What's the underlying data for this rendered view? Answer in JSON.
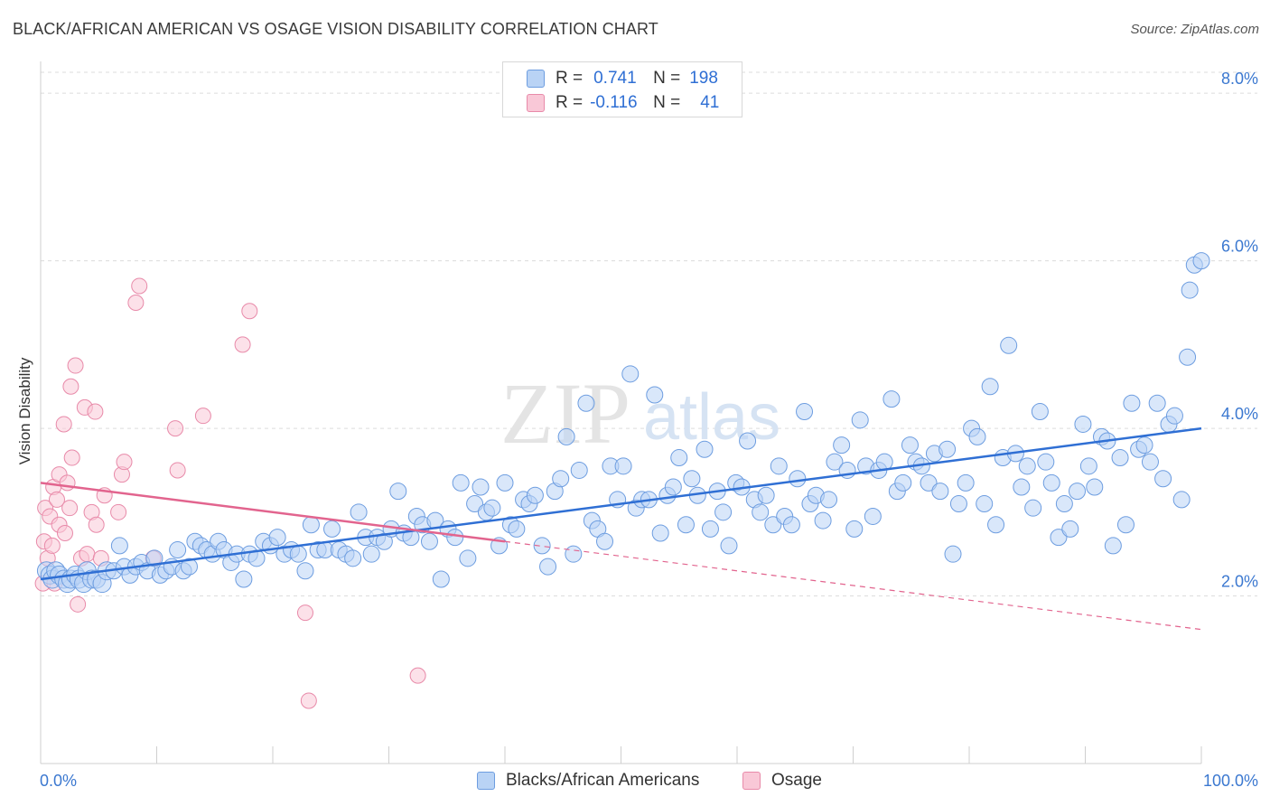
{
  "title": "BLACK/AFRICAN AMERICAN VS OSAGE VISION DISABILITY CORRELATION CHART",
  "source": "Source: ZipAtlas.com",
  "watermark": {
    "zip": "ZIP",
    "atlas": "atlas"
  },
  "legend": {
    "r_label": "R =",
    "n_label": "N =",
    "series1": {
      "r": "0.741",
      "n": "198"
    },
    "series2": {
      "r": "-0.116",
      "n": "41"
    }
  },
  "colors": {
    "blue_fill": "#b9d3f5",
    "blue_stroke": "#6d9de0",
    "blue_line": "#2f6fd4",
    "pink_fill": "#f9c8d7",
    "pink_stroke": "#e88aa9",
    "pink_line": "#e2648e",
    "tick_label": "#3b78d0",
    "grid": "#dcdcdc"
  },
  "chart_data": {
    "type": "scatter",
    "title": "BLACK/AFRICAN AMERICAN VS OSAGE VISION DISABILITY CORRELATION CHART",
    "xlabel": "",
    "ylabel": "Vision Disability",
    "xlim": [
      0,
      100
    ],
    "ylim": [
      0,
      8.25
    ],
    "x_tick_labels": [
      "0.0%",
      "100.0%"
    ],
    "y_ticks": [
      2,
      4,
      6,
      8
    ],
    "y_tick_labels": [
      "2.0%",
      "4.0%",
      "6.0%",
      "8.0%"
    ],
    "grid": true,
    "legend_placement": "bottom-center",
    "series": [
      {
        "name": "Blacks/African Americans",
        "trend": {
          "x": [
            0,
            100
          ],
          "y": [
            2.2,
            4.0
          ],
          "style": "solid"
        },
        "points": [
          [
            0.5,
            2.3
          ],
          [
            0.8,
            2.25
          ],
          [
            1.0,
            2.2
          ],
          [
            1.3,
            2.3
          ],
          [
            1.6,
            2.25
          ],
          [
            2.0,
            2.2
          ],
          [
            2.3,
            2.15
          ],
          [
            2.6,
            2.2
          ],
          [
            3.0,
            2.25
          ],
          [
            3.3,
            2.2
          ],
          [
            3.7,
            2.15
          ],
          [
            4.0,
            2.3
          ],
          [
            4.4,
            2.2
          ],
          [
            4.8,
            2.2
          ],
          [
            5.3,
            2.15
          ],
          [
            5.7,
            2.3
          ],
          [
            6.3,
            2.3
          ],
          [
            6.8,
            2.6
          ],
          [
            7.2,
            2.35
          ],
          [
            7.7,
            2.25
          ],
          [
            8.2,
            2.35
          ],
          [
            8.7,
            2.4
          ],
          [
            9.2,
            2.3
          ],
          [
            9.8,
            2.45
          ],
          [
            10.3,
            2.25
          ],
          [
            10.8,
            2.3
          ],
          [
            11.3,
            2.35
          ],
          [
            11.8,
            2.55
          ],
          [
            12.3,
            2.3
          ],
          [
            12.8,
            2.35
          ],
          [
            13.3,
            2.65
          ],
          [
            13.8,
            2.6
          ],
          [
            14.3,
            2.55
          ],
          [
            14.8,
            2.5
          ],
          [
            15.3,
            2.65
          ],
          [
            15.8,
            2.55
          ],
          [
            16.4,
            2.4
          ],
          [
            16.9,
            2.5
          ],
          [
            17.5,
            2.2
          ],
          [
            18.0,
            2.5
          ],
          [
            18.6,
            2.45
          ],
          [
            19.2,
            2.65
          ],
          [
            19.8,
            2.6
          ],
          [
            20.4,
            2.7
          ],
          [
            21.0,
            2.5
          ],
          [
            21.6,
            2.55
          ],
          [
            22.2,
            2.5
          ],
          [
            22.8,
            2.3
          ],
          [
            23.3,
            2.85
          ],
          [
            23.9,
            2.55
          ],
          [
            24.5,
            2.55
          ],
          [
            25.1,
            2.8
          ],
          [
            25.7,
            2.55
          ],
          [
            26.3,
            2.5
          ],
          [
            26.9,
            2.45
          ],
          [
            27.4,
            3.0
          ],
          [
            28.0,
            2.7
          ],
          [
            28.5,
            2.5
          ],
          [
            29.0,
            2.7
          ],
          [
            29.6,
            2.65
          ],
          [
            30.2,
            2.8
          ],
          [
            30.8,
            3.25
          ],
          [
            31.3,
            2.75
          ],
          [
            31.9,
            2.7
          ],
          [
            32.4,
            2.95
          ],
          [
            32.9,
            2.85
          ],
          [
            33.5,
            2.65
          ],
          [
            34.0,
            2.9
          ],
          [
            34.5,
            2.2
          ],
          [
            35.1,
            2.8
          ],
          [
            35.7,
            2.7
          ],
          [
            36.2,
            3.35
          ],
          [
            36.8,
            2.45
          ],
          [
            37.4,
            3.1
          ],
          [
            37.9,
            3.3
          ],
          [
            38.4,
            3.0
          ],
          [
            38.9,
            3.05
          ],
          [
            39.5,
            2.6
          ],
          [
            40.0,
            3.35
          ],
          [
            40.5,
            2.85
          ],
          [
            41.0,
            2.8
          ],
          [
            41.6,
            3.15
          ],
          [
            42.1,
            3.1
          ],
          [
            42.6,
            3.2
          ],
          [
            43.2,
            2.6
          ],
          [
            43.7,
            2.35
          ],
          [
            44.3,
            3.25
          ],
          [
            44.8,
            3.4
          ],
          [
            45.3,
            3.9
          ],
          [
            45.9,
            2.5
          ],
          [
            46.4,
            3.5
          ],
          [
            47.0,
            4.3
          ],
          [
            47.5,
            2.9
          ],
          [
            48.0,
            2.8
          ],
          [
            48.6,
            2.65
          ],
          [
            49.1,
            3.55
          ],
          [
            49.7,
            3.15
          ],
          [
            50.2,
            3.55
          ],
          [
            50.8,
            4.65
          ],
          [
            51.3,
            3.05
          ],
          [
            51.8,
            3.15
          ],
          [
            52.4,
            3.15
          ],
          [
            52.9,
            4.4
          ],
          [
            53.4,
            2.75
          ],
          [
            54.0,
            3.2
          ],
          [
            54.5,
            3.3
          ],
          [
            55.0,
            3.65
          ],
          [
            55.6,
            2.85
          ],
          [
            56.1,
            3.4
          ],
          [
            56.6,
            3.2
          ],
          [
            57.2,
            3.75
          ],
          [
            57.7,
            2.8
          ],
          [
            58.3,
            3.25
          ],
          [
            58.8,
            3.0
          ],
          [
            59.3,
            2.6
          ],
          [
            59.9,
            3.35
          ],
          [
            60.4,
            3.3
          ],
          [
            60.9,
            3.85
          ],
          [
            61.5,
            3.15
          ],
          [
            62.0,
            3.0
          ],
          [
            62.5,
            3.2
          ],
          [
            63.1,
            2.85
          ],
          [
            63.6,
            3.55
          ],
          [
            64.1,
            2.95
          ],
          [
            64.7,
            2.85
          ],
          [
            65.2,
            3.4
          ],
          [
            65.8,
            4.2
          ],
          [
            66.3,
            3.1
          ],
          [
            66.8,
            3.2
          ],
          [
            67.4,
            2.9
          ],
          [
            67.9,
            3.15
          ],
          [
            68.4,
            3.6
          ],
          [
            69.0,
            3.8
          ],
          [
            69.5,
            3.5
          ],
          [
            70.1,
            2.8
          ],
          [
            70.6,
            4.1
          ],
          [
            71.1,
            3.55
          ],
          [
            71.7,
            2.95
          ],
          [
            72.2,
            3.5
          ],
          [
            72.7,
            3.6
          ],
          [
            73.3,
            4.35
          ],
          [
            73.8,
            3.25
          ],
          [
            74.3,
            3.35
          ],
          [
            74.9,
            3.8
          ],
          [
            75.4,
            3.6
          ],
          [
            75.9,
            3.55
          ],
          [
            76.5,
            3.35
          ],
          [
            77.0,
            3.7
          ],
          [
            77.5,
            3.25
          ],
          [
            78.1,
            3.75
          ],
          [
            78.6,
            2.5
          ],
          [
            79.1,
            3.1
          ],
          [
            79.7,
            3.35
          ],
          [
            80.2,
            4.0
          ],
          [
            80.7,
            3.9
          ],
          [
            81.3,
            3.1
          ],
          [
            81.8,
            4.5
          ],
          [
            82.3,
            2.85
          ],
          [
            82.9,
            3.65
          ],
          [
            83.4,
            4.99
          ],
          [
            84.0,
            3.7
          ],
          [
            84.5,
            3.3
          ],
          [
            85.0,
            3.55
          ],
          [
            85.5,
            3.05
          ],
          [
            86.1,
            4.2
          ],
          [
            86.6,
            3.6
          ],
          [
            87.1,
            3.35
          ],
          [
            87.7,
            2.7
          ],
          [
            88.2,
            3.1
          ],
          [
            88.7,
            2.8
          ],
          [
            89.3,
            3.25
          ],
          [
            89.8,
            4.05
          ],
          [
            90.3,
            3.55
          ],
          [
            90.8,
            3.3
          ],
          [
            91.4,
            3.9
          ],
          [
            91.9,
            3.85
          ],
          [
            92.4,
            2.6
          ],
          [
            93.0,
            3.65
          ],
          [
            93.5,
            2.85
          ],
          [
            94.0,
            4.3
          ],
          [
            94.6,
            3.75
          ],
          [
            95.1,
            3.8
          ],
          [
            95.6,
            3.6
          ],
          [
            96.2,
            4.3
          ],
          [
            96.7,
            3.4
          ],
          [
            97.2,
            4.05
          ],
          [
            97.7,
            4.15
          ],
          [
            98.3,
            3.15
          ],
          [
            98.8,
            4.85
          ],
          [
            99.0,
            5.65
          ],
          [
            99.4,
            5.95
          ],
          [
            100.0,
            6.0
          ]
        ]
      },
      {
        "name": "Osage",
        "trend": {
          "x": [
            0,
            40,
            100
          ],
          "y": [
            3.35,
            2.65,
            1.6
          ],
          "style": "solid-then-dashed"
        },
        "points": [
          [
            0.2,
            2.15
          ],
          [
            0.3,
            2.65
          ],
          [
            0.4,
            3.05
          ],
          [
            0.6,
            2.45
          ],
          [
            0.8,
            2.95
          ],
          [
            1.0,
            2.6
          ],
          [
            1.1,
            3.3
          ],
          [
            1.2,
            2.15
          ],
          [
            1.4,
            3.15
          ],
          [
            1.6,
            2.85
          ],
          [
            1.6,
            3.45
          ],
          [
            2.0,
            4.05
          ],
          [
            2.1,
            2.75
          ],
          [
            2.3,
            3.35
          ],
          [
            2.5,
            3.05
          ],
          [
            2.6,
            4.5
          ],
          [
            2.7,
            3.65
          ],
          [
            3.0,
            4.75
          ],
          [
            3.2,
            1.9
          ],
          [
            3.5,
            2.45
          ],
          [
            3.8,
            4.25
          ],
          [
            4.0,
            2.5
          ],
          [
            4.4,
            3.0
          ],
          [
            4.7,
            4.2
          ],
          [
            4.8,
            2.85
          ],
          [
            5.2,
            2.45
          ],
          [
            5.5,
            3.2
          ],
          [
            6.7,
            3.0
          ],
          [
            7.0,
            3.45
          ],
          [
            7.2,
            3.6
          ],
          [
            8.2,
            5.5
          ],
          [
            8.5,
            5.7
          ],
          [
            9.7,
            2.45
          ],
          [
            11.6,
            4.0
          ],
          [
            11.8,
            3.5
          ],
          [
            14.0,
            4.15
          ],
          [
            17.4,
            5.0
          ],
          [
            18.0,
            5.4
          ],
          [
            22.8,
            1.8
          ],
          [
            23.1,
            0.75
          ],
          [
            32.5,
            1.05
          ]
        ]
      }
    ]
  }
}
